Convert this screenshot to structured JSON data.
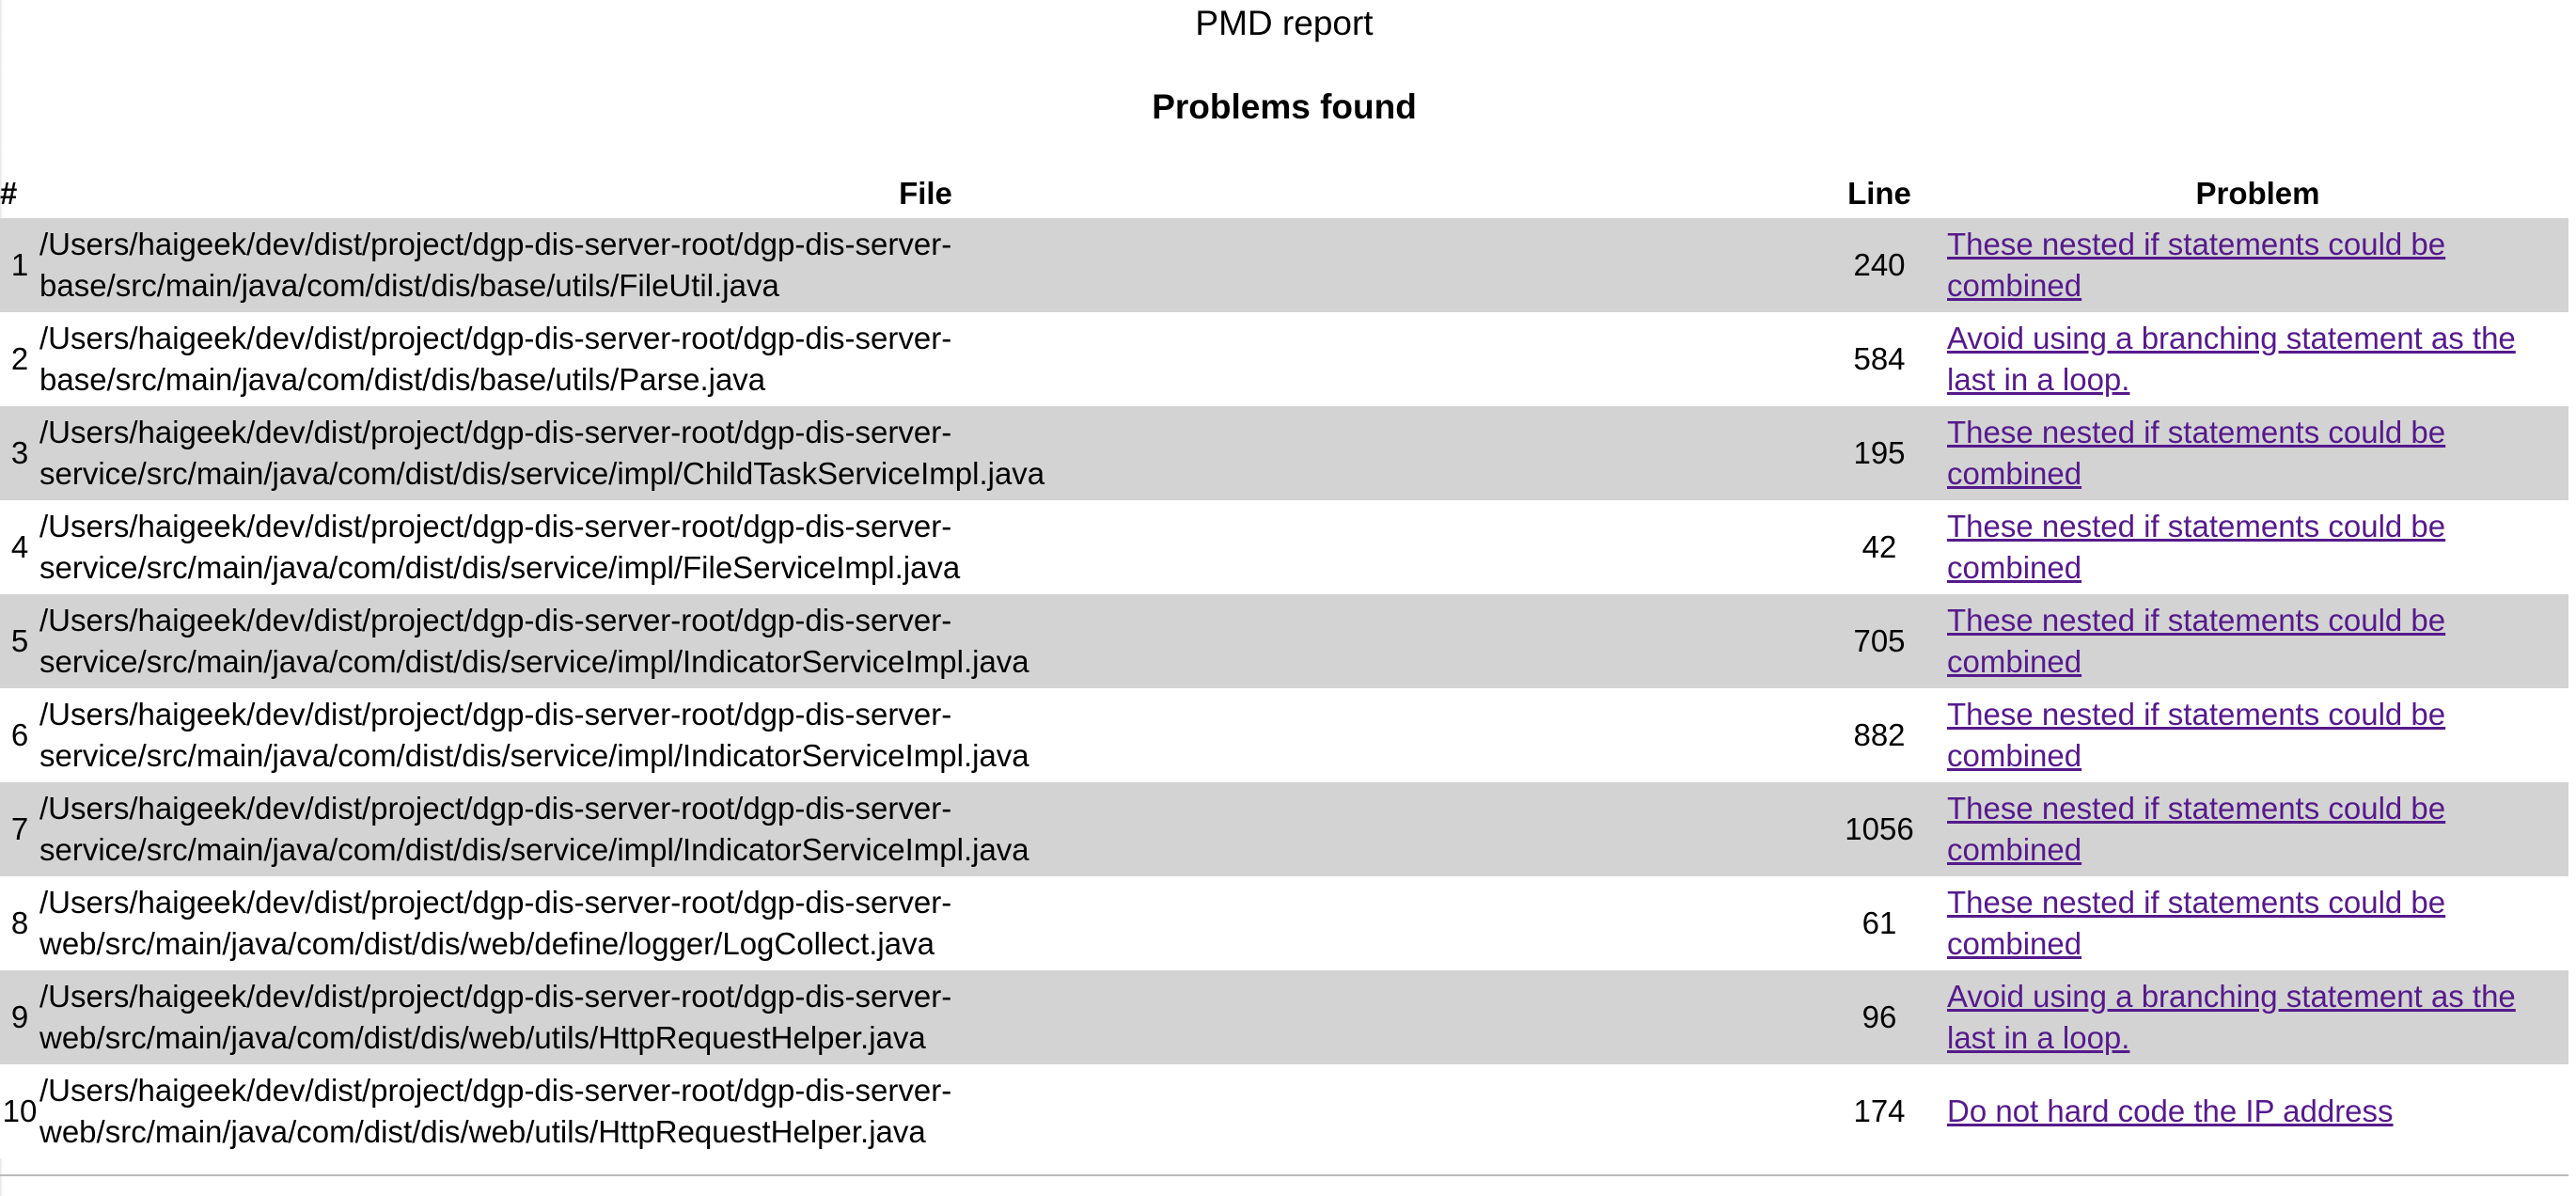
{
  "page": {
    "title": "PMD report",
    "section_title": "Problems found"
  },
  "table": {
    "headers": {
      "num": "#",
      "file": "File",
      "line": "Line",
      "problem": "Problem"
    },
    "rows": [
      {
        "num": "1",
        "file": "/Users/haigeek/dev/dist/project/dgp-dis-server-root/dgp-dis-server-\nbase/src/main/java/com/dist/dis/base/utils/FileUtil.java",
        "line": "240",
        "problem": "These nested if statements could be combined"
      },
      {
        "num": "2",
        "file": "/Users/haigeek/dev/dist/project/dgp-dis-server-root/dgp-dis-server-\nbase/src/main/java/com/dist/dis/base/utils/Parse.java",
        "line": "584",
        "problem": "Avoid using a branching statement as the last in a loop."
      },
      {
        "num": "3",
        "file": "/Users/haigeek/dev/dist/project/dgp-dis-server-root/dgp-dis-server-\nservice/src/main/java/com/dist/dis/service/impl/ChildTaskServiceImpl.java",
        "line": "195",
        "problem": "These nested if statements could be combined"
      },
      {
        "num": "4",
        "file": "/Users/haigeek/dev/dist/project/dgp-dis-server-root/dgp-dis-server-\nservice/src/main/java/com/dist/dis/service/impl/FileServiceImpl.java",
        "line": "42",
        "problem": "These nested if statements could be combined"
      },
      {
        "num": "5",
        "file": "/Users/haigeek/dev/dist/project/dgp-dis-server-root/dgp-dis-server-\nservice/src/main/java/com/dist/dis/service/impl/IndicatorServiceImpl.java",
        "line": "705",
        "problem": "These nested if statements could be combined"
      },
      {
        "num": "6",
        "file": "/Users/haigeek/dev/dist/project/dgp-dis-server-root/dgp-dis-server-\nservice/src/main/java/com/dist/dis/service/impl/IndicatorServiceImpl.java",
        "line": "882",
        "problem": "These nested if statements could be combined"
      },
      {
        "num": "7",
        "file": "/Users/haigeek/dev/dist/project/dgp-dis-server-root/dgp-dis-server-\nservice/src/main/java/com/dist/dis/service/impl/IndicatorServiceImpl.java",
        "line": "1056",
        "problem": "These nested if statements could be combined"
      },
      {
        "num": "8",
        "file": "/Users/haigeek/dev/dist/project/dgp-dis-server-root/dgp-dis-server-\nweb/src/main/java/com/dist/dis/web/define/logger/LogCollect.java",
        "line": "61",
        "problem": "These nested if statements could be combined"
      },
      {
        "num": "9",
        "file": "/Users/haigeek/dev/dist/project/dgp-dis-server-root/dgp-dis-server-\nweb/src/main/java/com/dist/dis/web/utils/HttpRequestHelper.java",
        "line": "96",
        "problem": "Avoid using a branching statement as the last in a loop."
      },
      {
        "num": "10",
        "file": "/Users/haigeek/dev/dist/project/dgp-dis-server-root/dgp-dis-server-\nweb/src/main/java/com/dist/dis/web/utils/HttpRequestHelper.java",
        "line": "174",
        "problem": "Do not hard code the IP address"
      }
    ]
  },
  "colors": {
    "odd_row_bg": "#d3d3d3",
    "even_row_bg": "#ffffff",
    "link_visited": "#551a8b"
  }
}
